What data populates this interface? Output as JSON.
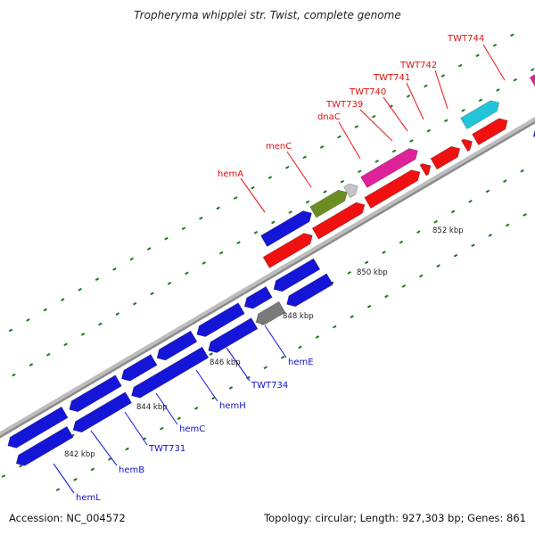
{
  "title": "Tropheryma whipplei str. Twist, complete genome",
  "footer": {
    "accession": "Accession: NC_004572",
    "summary": "Topology: circular; Length: 927,303 bp; Genes: 861"
  },
  "colors": {
    "background": "#ffffff",
    "backbone": "#8a8a8a",
    "blue_gene": "#1515d8",
    "red_gene": "#f01010",
    "magenta_gene": "#e0229a",
    "cyan_gene": "#22c4d8",
    "light_blue_gene": "#24a8ee",
    "olive_gene": "#6b8e23",
    "gray_gene": "#7a7a7a",
    "light_gray_gene": "#c4c4c4",
    "tick": "#1c7a1c",
    "label_red": "#dd1111",
    "label_blue": "#1111cc",
    "leader_red": "#ee2222",
    "leader_blue": "#2222dd"
  },
  "kbp_labels": [
    "842 kbp",
    "844 kbp",
    "846 kbp",
    "848 kbp",
    "850 kbp",
    "852 kbp"
  ],
  "gene_labels_top": [
    "hemA",
    "menC",
    "dnaC",
    "TWT739",
    "TWT740",
    "TWT741",
    "TWT742",
    "TWT744"
  ],
  "gene_labels_bottom": [
    "hemL",
    "hemB",
    "TWT731",
    "hemC",
    "hemH",
    "TWT734",
    "hemE"
  ]
}
